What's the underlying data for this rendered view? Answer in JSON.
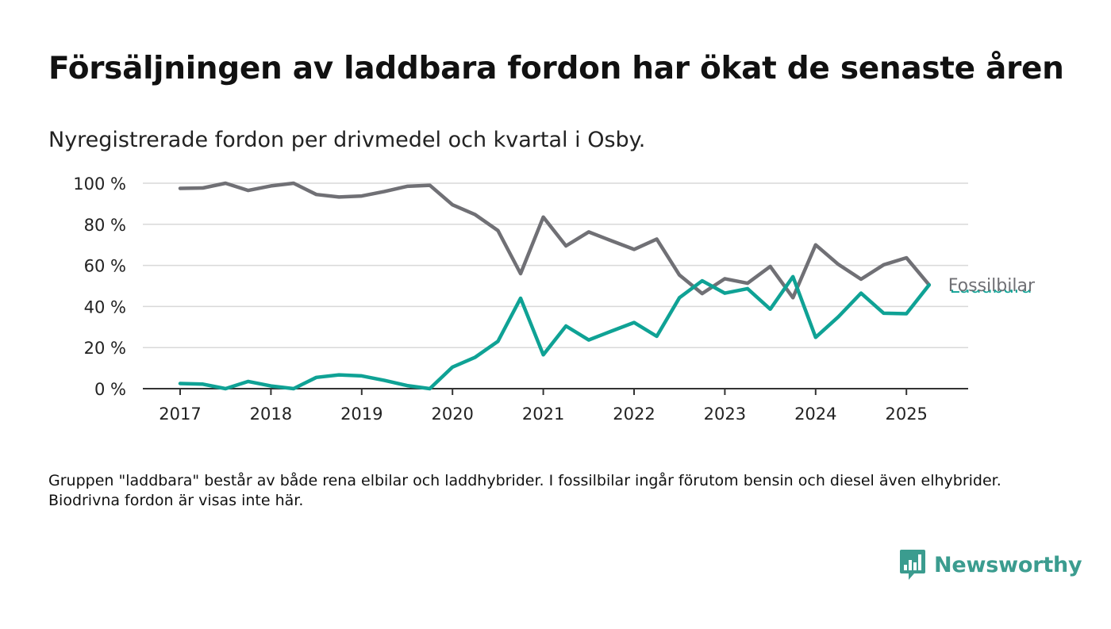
{
  "title": "Försäljningen av laddbara fordon har ökat de senaste åren",
  "subtitle": "Nyregistrerade fordon per drivmedel och kvartal i Osby.",
  "note": "Gruppen \"laddbara\" består av både rena elbilar och laddhybrider. I fossilbilar ingår förutom bensin och diesel även elhybrider. Biodrivna fordon är visas inte här.",
  "brand": {
    "name": "Newsworthy",
    "icon": "newsworthy-logo-icon",
    "color": "#3b9c8f"
  },
  "chart_data": {
    "type": "line",
    "title": "Försäljningen av laddbara fordon har ökat de senaste åren",
    "subtitle": "Nyregistrerade fordon per drivmedel och kvartal i Osby.",
    "xlabel": "",
    "ylabel": "",
    "ylim": [
      0,
      100
    ],
    "xlim": [
      2017,
      2025.5
    ],
    "yticks": [
      0,
      20,
      40,
      60,
      80,
      100
    ],
    "ytick_labels": [
      "0 %",
      "20 %",
      "40 %",
      "60 %",
      "80 %",
      "100 %"
    ],
    "xticks": [
      2017,
      2018,
      2019,
      2020,
      2021,
      2022,
      2023,
      2024,
      2025
    ],
    "xtick_labels": [
      "2017",
      "2018",
      "2019",
      "2020",
      "2021",
      "2022",
      "2023",
      "2024",
      "2025"
    ],
    "grid": "horizontal",
    "x": [
      2017.0,
      2017.25,
      2017.5,
      2017.75,
      2018.0,
      2018.25,
      2018.5,
      2018.75,
      2019.0,
      2019.25,
      2019.5,
      2019.75,
      2020.0,
      2020.25,
      2020.5,
      2020.75,
      2021.0,
      2021.25,
      2021.5,
      2021.75,
      2022.0,
      2022.25,
      2022.5,
      2022.75,
      2023.0,
      2023.25,
      2023.5,
      2023.75,
      2024.0,
      2024.25,
      2024.5,
      2024.75,
      2025.0,
      2025.25
    ],
    "series": [
      {
        "name": "Fossilbilar",
        "color": "#707075",
        "values": [
          97.5,
          97.7,
          100,
          96.5,
          98.7,
          100,
          94.5,
          93.3,
          93.8,
          96.0,
          98.5,
          99.0,
          89.5,
          84.7,
          77.0,
          56.0,
          83.5,
          69.5,
          76.3,
          72.0,
          67.8,
          72.8,
          55.3,
          46.3,
          53.5,
          51.3,
          59.5,
          44.3,
          70.0,
          60.5,
          53.3,
          60.3,
          63.7,
          50.5
        ]
      },
      {
        "name": "Laddbara",
        "color": "#0fa295",
        "values": [
          2.5,
          2.2,
          0,
          3.5,
          1.3,
          0,
          5.5,
          6.7,
          6.2,
          4.0,
          1.5,
          0,
          10.5,
          15.3,
          23.0,
          44.0,
          16.5,
          30.5,
          23.7,
          28.0,
          32.2,
          25.5,
          44.3,
          52.5,
          46.5,
          48.7,
          38.7,
          54.5,
          25.0,
          35.0,
          46.5,
          36.7,
          36.5,
          50.5
        ]
      }
    ]
  }
}
